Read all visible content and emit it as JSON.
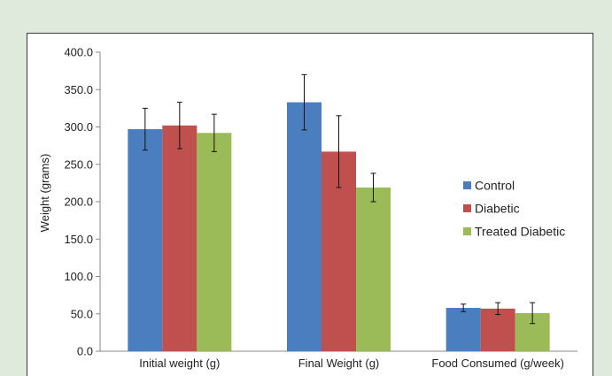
{
  "chart_data": {
    "type": "bar",
    "title": "",
    "xlabel": "",
    "ylabel": "Weight (grams)",
    "ylim": [
      0,
      400
    ],
    "yticks": [
      "0.0",
      "50.0",
      "100.0",
      "150.0",
      "200.0",
      "250.0",
      "300.0",
      "350.0",
      "400.0"
    ],
    "grid": false,
    "legend_position": "right",
    "categories": [
      "Initial weight (g)",
      "Final Weight (g)",
      "Food Consumed (g/week)"
    ],
    "series": [
      {
        "name": "Control",
        "color": "#4a7ebf",
        "values": [
          297,
          333,
          58
        ],
        "errors": [
          28,
          37,
          5
        ]
      },
      {
        "name": "Diabetic",
        "color": "#c0504d",
        "values": [
          302,
          267,
          57
        ],
        "errors": [
          31,
          48,
          8
        ]
      },
      {
        "name": "Treated Diabetic",
        "color": "#9bbb59",
        "values": [
          292,
          219,
          51
        ],
        "errors": [
          25,
          19,
          14
        ]
      }
    ]
  }
}
